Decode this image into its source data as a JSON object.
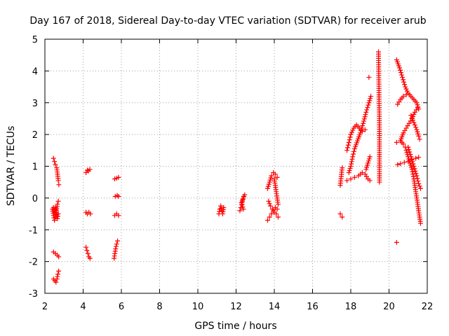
{
  "chart_data": {
    "type": "scatter",
    "title": "Day 167 of 2018, Sidereal Day-to-day VTEC variation (SDTVAR) for receiver arub",
    "xlabel": "GPS time / hours",
    "ylabel": "SDTVAR / TECUs",
    "xlim": [
      2,
      22
    ],
    "ylim": [
      -3,
      5
    ],
    "xticks": [
      2,
      4,
      6,
      8,
      10,
      12,
      14,
      16,
      18,
      20,
      22
    ],
    "yticks": [
      -3,
      -2,
      -1,
      0,
      1,
      2,
      3,
      4,
      5
    ],
    "grid": true,
    "marker": "+",
    "color": "#ff0000",
    "series": [
      {
        "name": "SDTVAR",
        "segments": [
          [
            [
              2.45,
              1.25
            ],
            [
              2.5,
              1.15
            ],
            [
              2.55,
              1.05
            ]
          ],
          [
            [
              2.62,
              0.95
            ],
            [
              2.66,
              0.75
            ],
            [
              2.7,
              0.55
            ],
            [
              2.73,
              0.42
            ]
          ],
          [
            [
              2.4,
              -0.35
            ],
            [
              2.45,
              -0.55
            ],
            [
              2.5,
              -0.7
            ],
            [
              2.55,
              -0.6
            ],
            [
              2.6,
              -0.4
            ],
            [
              2.65,
              -0.2
            ],
            [
              2.7,
              -0.1
            ]
          ],
          [
            [
              2.45,
              -0.3
            ],
            [
              2.5,
              -0.45
            ],
            [
              2.55,
              -0.3
            ],
            [
              2.6,
              -0.45
            ],
            [
              2.65,
              -0.65
            ],
            [
              2.7,
              -0.5
            ]
          ],
          [
            [
              2.45,
              -1.7
            ],
            [
              2.55,
              -1.75
            ],
            [
              2.65,
              -1.8
            ],
            [
              2.72,
              -1.85
            ]
          ],
          [
            [
              2.45,
              -2.55
            ],
            [
              2.52,
              -2.6
            ],
            [
              2.58,
              -2.65
            ],
            [
              2.63,
              -2.55
            ],
            [
              2.68,
              -2.4
            ],
            [
              2.72,
              -2.3
            ]
          ],
          [
            [
              4.15,
              0.8
            ],
            [
              4.22,
              0.88
            ],
            [
              4.28,
              0.85
            ],
            [
              4.35,
              0.9
            ]
          ],
          [
            [
              4.15,
              -0.45
            ],
            [
              4.22,
              -0.5
            ],
            [
              4.3,
              -0.45
            ],
            [
              4.38,
              -0.5
            ]
          ],
          [
            [
              4.15,
              -1.55
            ],
            [
              4.2,
              -1.65
            ],
            [
              4.25,
              -1.75
            ],
            [
              4.3,
              -1.85
            ],
            [
              4.36,
              -1.9
            ]
          ],
          [
            [
              5.65,
              0.6
            ],
            [
              5.75,
              0.62
            ],
            [
              5.85,
              0.65
            ]
          ],
          [
            [
              5.68,
              0.05
            ],
            [
              5.78,
              0.08
            ],
            [
              5.85,
              0.05
            ]
          ],
          [
            [
              5.65,
              -0.55
            ],
            [
              5.75,
              -0.5
            ],
            [
              5.85,
              -0.55
            ]
          ],
          [
            [
              5.62,
              -1.9
            ],
            [
              5.66,
              -1.75
            ],
            [
              5.7,
              -1.6
            ],
            [
              5.75,
              -1.45
            ],
            [
              5.8,
              -1.35
            ]
          ],
          [
            [
              11.1,
              -0.5
            ],
            [
              11.15,
              -0.35
            ],
            [
              11.2,
              -0.25
            ],
            [
              11.25,
              -0.4
            ],
            [
              11.3,
              -0.5
            ],
            [
              11.35,
              -0.3
            ]
          ],
          [
            [
              12.2,
              -0.4
            ],
            [
              12.25,
              -0.3
            ],
            [
              12.3,
              -0.2
            ],
            [
              12.35,
              -0.05
            ],
            [
              12.4,
              0.05
            ],
            [
              12.45,
              0.1
            ],
            [
              12.28,
              -0.15
            ],
            [
              12.38,
              -0.35
            ]
          ],
          [
            [
              13.65,
              -0.7
            ],
            [
              13.75,
              -0.6
            ],
            [
              13.85,
              -0.5
            ],
            [
              13.95,
              -0.4
            ],
            [
              14.05,
              -0.3
            ],
            [
              14.15,
              -0.35
            ]
          ],
          [
            [
              13.65,
              0.3
            ],
            [
              13.75,
              0.5
            ],
            [
              13.85,
              0.7
            ],
            [
              13.95,
              0.8
            ],
            [
              14.05,
              0.75
            ],
            [
              14.15,
              0.65
            ]
          ],
          [
            [
              13.7,
              -0.1
            ],
            [
              13.8,
              -0.25
            ],
            [
              13.9,
              -0.35
            ],
            [
              14.0,
              -0.45
            ],
            [
              14.1,
              -0.5
            ],
            [
              14.2,
              -0.6
            ]
          ],
          [
            [
              14.0,
              0.6
            ],
            [
              14.05,
              0.4
            ],
            [
              14.1,
              0.2
            ],
            [
              14.15,
              0.0
            ],
            [
              14.2,
              -0.2
            ]
          ],
          [
            [
              17.45,
              0.4
            ],
            [
              17.55,
              0.95
            ]
          ],
          [
            [
              17.45,
              -0.5
            ],
            [
              17.55,
              -0.6
            ]
          ],
          [
            [
              17.8,
              0.55
            ],
            [
              18.0,
              0.6
            ],
            [
              18.2,
              0.65
            ],
            [
              18.4,
              0.7
            ],
            [
              18.6,
              0.8
            ],
            [
              18.75,
              0.75
            ],
            [
              18.9,
              0.6
            ],
            [
              19.0,
              0.55
            ]
          ],
          [
            [
              17.8,
              1.5
            ],
            [
              17.9,
              1.75
            ],
            [
              18.0,
              2.0
            ],
            [
              18.15,
              2.2
            ],
            [
              18.3,
              2.3
            ],
            [
              18.45,
              2.2
            ],
            [
              18.6,
              2.1
            ],
            [
              18.75,
              2.15
            ]
          ],
          [
            [
              17.9,
              0.8
            ],
            [
              18.0,
              1.0
            ],
            [
              18.1,
              1.3
            ],
            [
              18.2,
              1.55
            ],
            [
              18.35,
              1.8
            ],
            [
              18.5,
              2.05
            ],
            [
              18.65,
              2.35
            ],
            [
              18.8,
              2.7
            ],
            [
              18.95,
              3.0
            ],
            [
              19.05,
              3.2
            ]
          ],
          [
            [
              18.8,
              0.9
            ],
            [
              18.9,
              1.1
            ],
            [
              19.0,
              1.3
            ]
          ],
          [
            [
              18.95,
              3.8
            ]
          ],
          [
            [
              19.45,
              4.6
            ],
            [
              19.5,
              2.1
            ],
            [
              19.5,
              1.7
            ],
            [
              19.5,
              0.5
            ]
          ],
          [
            [
              20.4,
              -1.4
            ]
          ],
          [
            [
              20.4,
              4.35
            ],
            [
              20.55,
              4.1
            ],
            [
              20.7,
              3.8
            ],
            [
              20.85,
              3.5
            ],
            [
              21.0,
              3.3
            ],
            [
              21.15,
              3.2
            ],
            [
              21.3,
              3.1
            ],
            [
              21.45,
              3.0
            ],
            [
              21.55,
              2.8
            ]
          ],
          [
            [
              20.45,
              2.95
            ],
            [
              20.6,
              3.1
            ],
            [
              20.75,
              3.2
            ],
            [
              20.9,
              3.25
            ]
          ],
          [
            [
              20.4,
              1.75
            ],
            [
              20.6,
              1.8
            ],
            [
              20.75,
              1.7
            ],
            [
              20.85,
              1.6
            ]
          ],
          [
            [
              20.6,
              1.8
            ],
            [
              20.75,
              2.05
            ],
            [
              20.9,
              2.2
            ],
            [
              21.05,
              2.35
            ],
            [
              21.2,
              2.5
            ],
            [
              21.35,
              2.7
            ],
            [
              21.5,
              2.85
            ]
          ],
          [
            [
              20.45,
              1.05
            ],
            [
              20.6,
              1.08
            ],
            [
              20.8,
              1.12
            ],
            [
              21.0,
              1.15
            ],
            [
              21.2,
              1.2
            ],
            [
              21.4,
              1.25
            ],
            [
              21.55,
              1.28
            ]
          ],
          [
            [
              20.9,
              1.5
            ],
            [
              21.0,
              1.3
            ],
            [
              21.1,
              1.1
            ],
            [
              21.2,
              0.9
            ],
            [
              21.3,
              0.6
            ],
            [
              21.4,
              0.2
            ],
            [
              21.5,
              -0.2
            ],
            [
              21.6,
              -0.6
            ],
            [
              21.65,
              -0.8
            ]
          ],
          [
            [
              21.15,
              2.6
            ],
            [
              21.25,
              2.45
            ],
            [
              21.35,
              2.3
            ],
            [
              21.45,
              2.15
            ],
            [
              21.55,
              1.95
            ],
            [
              21.6,
              1.85
            ]
          ],
          [
            [
              21.0,
              1.6
            ],
            [
              21.15,
              1.3
            ],
            [
              21.3,
              1.0
            ],
            [
              21.45,
              0.7
            ],
            [
              21.55,
              0.45
            ],
            [
              21.65,
              0.3
            ]
          ]
        ]
      }
    ]
  }
}
